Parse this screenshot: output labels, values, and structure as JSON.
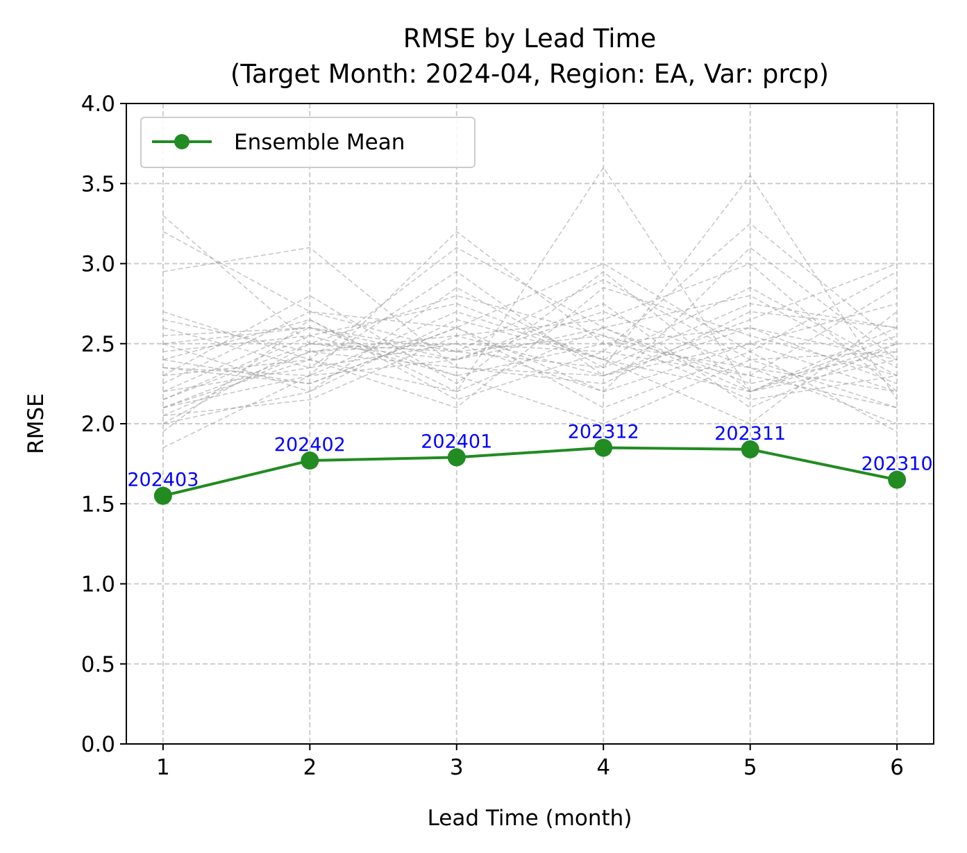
{
  "chart_data": {
    "type": "line",
    "title_line1": "RMSE by Lead Time",
    "title_line2": "(Target Month: 2024-04, Region: EA, Var: prcp)",
    "xlabel": "Lead Time (month)",
    "ylabel": "RMSE",
    "x": [
      1,
      2,
      3,
      4,
      5,
      6
    ],
    "x_ticks": [
      "1",
      "2",
      "3",
      "4",
      "5",
      "6"
    ],
    "xlim": [
      0.75,
      6.25
    ],
    "ylim": [
      0,
      4
    ],
    "y_ticks": [
      "0.0",
      "0.5",
      "1.0",
      "1.5",
      "2.0",
      "2.5",
      "3.0",
      "3.5",
      "4.0"
    ],
    "grid": true,
    "legend_position": "top-left",
    "series": [
      {
        "name": "Ensemble Mean",
        "color": "#228B22",
        "values": [
          1.55,
          1.77,
          1.79,
          1.85,
          1.84,
          1.65
        ],
        "point_labels": [
          "202403",
          "202402",
          "202401",
          "202312",
          "202311",
          "202310"
        ],
        "point_label_color": "#0000ff"
      }
    ],
    "member_series_color": "#999999",
    "member_series": [
      [
        2.05,
        2.45,
        2.55,
        2.3,
        2.5,
        2.2
      ],
      [
        2.1,
        2.3,
        2.7,
        2.4,
        2.2,
        2.6
      ],
      [
        2.2,
        2.6,
        2.4,
        2.75,
        2.1,
        2.5
      ],
      [
        2.3,
        2.4,
        2.2,
        2.6,
        2.8,
        2.3
      ],
      [
        2.0,
        2.5,
        2.45,
        2.9,
        2.4,
        2.1
      ],
      [
        2.4,
        2.25,
        2.6,
        2.2,
        3.1,
        2.4
      ],
      [
        2.6,
        2.35,
        2.5,
        2.45,
        2.3,
        2.85
      ],
      [
        2.15,
        2.55,
        2.3,
        2.5,
        2.6,
        2.25
      ],
      [
        1.95,
        2.65,
        2.2,
        3.6,
        2.2,
        2.5
      ],
      [
        2.5,
        2.2,
        2.85,
        2.35,
        3.55,
        2.15
      ],
      [
        2.25,
        2.7,
        2.6,
        2.1,
        2.45,
        2.95
      ],
      [
        3.3,
        2.5,
        2.4,
        2.6,
        2.2,
        2.4
      ],
      [
        2.35,
        2.3,
        3.2,
        2.5,
        2.35,
        2.0
      ],
      [
        2.1,
        2.45,
        2.35,
        2.25,
        2.7,
        2.6
      ],
      [
        2.7,
        2.4,
        2.1,
        2.85,
        2.55,
        2.3
      ],
      [
        2.45,
        2.55,
        2.75,
        2.4,
        2.0,
        2.7
      ],
      [
        2.05,
        2.15,
        2.55,
        2.65,
        3.0,
        2.2
      ],
      [
        2.55,
        2.6,
        2.3,
        2.0,
        2.4,
        2.45
      ],
      [
        2.2,
        2.35,
        2.95,
        2.3,
        2.65,
        3.0
      ],
      [
        3.2,
        2.7,
        2.45,
        2.55,
        2.3,
        2.1
      ],
      [
        2.3,
        2.8,
        2.25,
        2.95,
        2.2,
        2.55
      ],
      [
        2.0,
        2.2,
        2.65,
        2.4,
        2.85,
        2.35
      ],
      [
        2.65,
        2.45,
        2.5,
        2.2,
        2.5,
        2.75
      ],
      [
        1.85,
        2.3,
        2.4,
        2.7,
        2.35,
        2.2
      ],
      [
        2.4,
        2.65,
        2.15,
        2.45,
        3.25,
        2.5
      ],
      [
        2.15,
        2.5,
        2.8,
        2.55,
        2.15,
        2.3
      ],
      [
        2.95,
        3.1,
        2.35,
        2.3,
        2.6,
        2.4
      ],
      [
        2.35,
        2.25,
        2.6,
        3.0,
        2.45,
        1.95
      ],
      [
        2.5,
        2.6,
        2.45,
        2.35,
        2.75,
        2.6
      ],
      [
        2.1,
        2.4,
        3.1,
        2.6,
        2.25,
        2.45
      ]
    ]
  }
}
